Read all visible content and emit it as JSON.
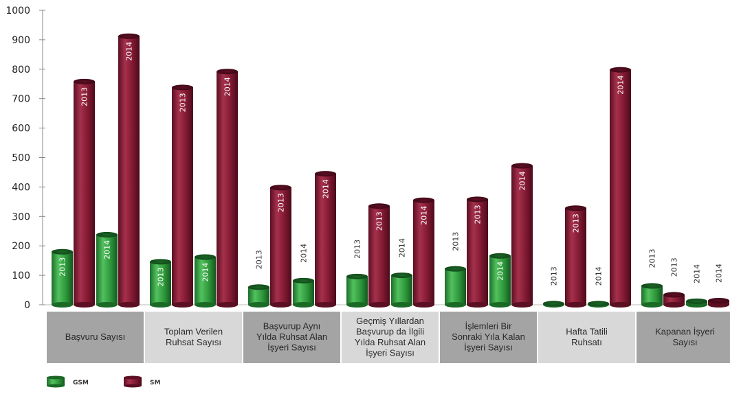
{
  "chart_data": {
    "type": "bar",
    "ylim": [
      0,
      1000
    ],
    "yticks": [
      "0",
      "100",
      "200",
      "300",
      "400",
      "500",
      "600",
      "700",
      "800",
      "900",
      "1000"
    ],
    "grid": false,
    "legend_position": "bottom-left",
    "categories": [
      [
        "Başvuru Sayısı"
      ],
      [
        "Toplam Verilen",
        "Ruhsat Sayısı"
      ],
      [
        "Başvurup Aynı",
        "Yılda Ruhsat Alan",
        "İşyeri Sayısı"
      ],
      [
        "Geçmiş Yıllardan",
        "Başvurup da İlgili",
        "Yılda Ruhsat Alan",
        "İşyeri Sayısı"
      ],
      [
        "İşlemleri Bir",
        "Sonraki Yıla Kalan",
        "İşyeri Sayısı"
      ],
      [
        "Hafta Tatili",
        "Ruhsatı"
      ],
      [
        "Kapanan İşyeri",
        "Sayısı"
      ]
    ],
    "series": [
      {
        "name": "GSM",
        "color": "#2e9a3c"
      },
      {
        "name": "SM",
        "color": "#7d1830"
      }
    ],
    "bars": [
      [
        {
          "series": 0,
          "year": "2013",
          "value": 180
        },
        {
          "series": 1,
          "year": "2013",
          "value": 758
        },
        {
          "series": 0,
          "year": "2014",
          "value": 238
        },
        {
          "series": 1,
          "year": "2014",
          "value": 912
        }
      ],
      [
        {
          "series": 0,
          "year": "2013",
          "value": 146
        },
        {
          "series": 1,
          "year": "2013",
          "value": 738
        },
        {
          "series": 0,
          "year": "2014",
          "value": 162
        },
        {
          "series": 1,
          "year": "2014",
          "value": 792
        }
      ],
      [
        {
          "series": 0,
          "year": "2013",
          "value": 60
        },
        {
          "series": 1,
          "year": "2013",
          "value": 398
        },
        {
          "series": 0,
          "year": "2014",
          "value": 82
        },
        {
          "series": 1,
          "year": "2014",
          "value": 445
        }
      ],
      [
        {
          "series": 0,
          "year": "2013",
          "value": 96
        },
        {
          "series": 1,
          "year": "2013",
          "value": 335
        },
        {
          "series": 0,
          "year": "2014",
          "value": 100
        },
        {
          "series": 1,
          "year": "2014",
          "value": 355
        }
      ],
      [
        {
          "series": 0,
          "year": "2013",
          "value": 122
        },
        {
          "series": 1,
          "year": "2013",
          "value": 358
        },
        {
          "series": 0,
          "year": "2014",
          "value": 166
        },
        {
          "series": 1,
          "year": "2014",
          "value": 472
        }
      ],
      [
        {
          "series": 0,
          "year": "2013",
          "value": 4
        },
        {
          "series": 1,
          "year": "2013",
          "value": 328
        },
        {
          "series": 0,
          "year": "2014",
          "value": 4
        },
        {
          "series": 1,
          "year": "2014",
          "value": 798
        }
      ],
      [
        {
          "series": 0,
          "year": "2013",
          "value": 64
        },
        {
          "series": 1,
          "year": "2013",
          "value": 34
        },
        {
          "series": 0,
          "year": "2014",
          "value": 12
        },
        {
          "series": 1,
          "year": "2014",
          "value": 14
        }
      ]
    ]
  }
}
